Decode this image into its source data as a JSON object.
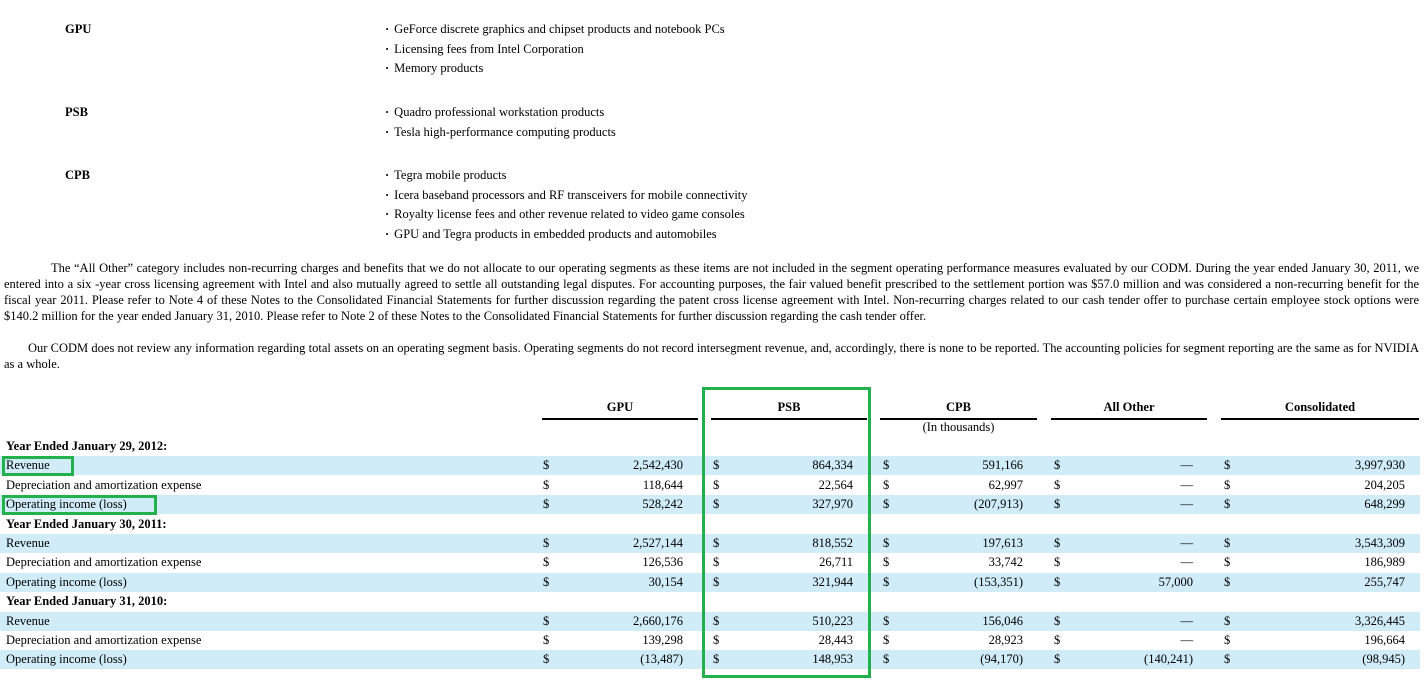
{
  "segments": [
    {
      "name": "GPU",
      "items": [
        "GeForce discrete graphics and chipset products and notebook PCs",
        "Licensing fees from Intel Corporation",
        "Memory products"
      ]
    },
    {
      "name": "PSB",
      "items": [
        "Quadro professional workstation products",
        "Tesla high-performance computing products"
      ]
    },
    {
      "name": "CPB",
      "items": [
        "Tegra mobile products",
        "Icera baseband processors and RF transceivers for mobile connectivity",
        "Royalty license fees and other revenue related to video game consoles",
        "GPU and Tegra products in embedded products and automobiles"
      ]
    }
  ],
  "paragraphs": {
    "p1": "The “All Other” category includes non-recurring charges and benefits that we do not allocate to our operating segments as these items are not included in the segment operating performance measures evaluated by our CODM. During the year ended January 30, 2011, we entered into a six -year cross licensing agreement with Intel and also mutually agreed to settle all outstanding legal disputes. For accounting purposes, the fair valued benefit prescribed to the settlement portion was $57.0 million and was considered a non-recurring benefit for the fiscal year 2011. Please refer to Note 4 of these Notes to the Consolidated Financial Statements for further discussion regarding the patent cross license agreement with Intel. Non-recurring charges related to our cash tender offer to purchase certain employee stock options were $140.2 million for the year ended January 31, 2010. Please refer to Note 2 of these Notes to the Consolidated Financial Statements for further discussion regarding the cash tender offer.",
    "p2": "Our CODM does not review any information regarding total assets on an operating segment basis. Operating segments do not record intersegment revenue, and, accordingly, there is none to be reported. The accounting policies for segment reporting are the same as for NVIDIA as a whole."
  },
  "table": {
    "columns": [
      "GPU",
      "PSB",
      "CPB",
      "All Other",
      "Consolidated"
    ],
    "units_note": "(In thousands)",
    "currency": "$",
    "periods": [
      {
        "label": "Year Ended January 29, 2012:",
        "rows": [
          {
            "label": "Revenue",
            "values": [
              "2,542,430",
              "864,334",
              "591,166",
              "—",
              "3,997,930"
            ]
          },
          {
            "label": "Depreciation and amortization expense",
            "values": [
              "118,644",
              "22,564",
              "62,997",
              "—",
              "204,205"
            ]
          },
          {
            "label": "Operating income (loss)",
            "values": [
              "528,242",
              "327,970",
              "(207,913)",
              "—",
              "648,299"
            ]
          }
        ]
      },
      {
        "label": "Year Ended January 30, 2011:",
        "rows": [
          {
            "label": "Revenue",
            "values": [
              "2,527,144",
              "818,552",
              "197,613",
              "—",
              "3,543,309"
            ]
          },
          {
            "label": "Depreciation and amortization expense",
            "values": [
              "126,536",
              "26,711",
              "33,742",
              "—",
              "186,989"
            ]
          },
          {
            "label": "Operating income (loss)",
            "values": [
              "30,154",
              "321,944",
              "(153,351)",
              "57,000",
              "255,747"
            ]
          }
        ]
      },
      {
        "label": "Year Ended January 31, 2010:",
        "rows": [
          {
            "label": "Revenue",
            "values": [
              "2,660,176",
              "510,223",
              "156,046",
              "—",
              "3,326,445"
            ]
          },
          {
            "label": "Depreciation and amortization expense",
            "values": [
              "139,298",
              "28,443",
              "28,923",
              "—",
              "196,664"
            ]
          },
          {
            "label": "Operating income (loss)",
            "values": [
              "(13,487)",
              "148,953",
              "(94,170)",
              "(140,241)",
              "(98,945)"
            ]
          }
        ]
      }
    ]
  },
  "highlight_color": "#22b14c",
  "row_shade_color": "#cfecf8"
}
